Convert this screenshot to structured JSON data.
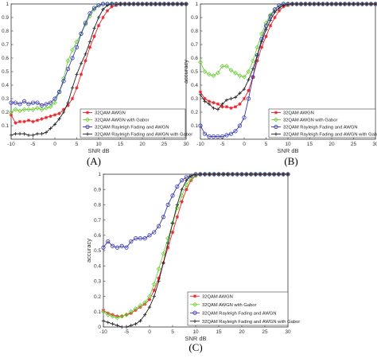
{
  "chart_data": [
    {
      "panel": "(A)",
      "type": "line",
      "xlabel": "SNR dB",
      "ylabel": "accuracy",
      "xlim": [
        -10,
        30
      ],
      "ylim": [
        0,
        1
      ],
      "xticks": [
        -10,
        -5,
        0,
        5,
        10,
        15,
        20,
        25,
        30
      ],
      "yticks": [
        0.1,
        0.2,
        0.3,
        0.4,
        0.5,
        0.6,
        0.7,
        0.8,
        0.9,
        1
      ],
      "grid": false,
      "legend_position": "bottom-right",
      "x": [
        -10,
        -9,
        -8,
        -7,
        -6,
        -5,
        -4,
        -3,
        -2,
        -1,
        0,
        1,
        2,
        3,
        4,
        5,
        6,
        7,
        8,
        9,
        10,
        11,
        12,
        13,
        14,
        15,
        16,
        17,
        18,
        19,
        20,
        21,
        22,
        23,
        24,
        25,
        26,
        27,
        28,
        29,
        30
      ],
      "series": [
        {
          "name": "32QAM AWGN",
          "color": "#e8232a",
          "marker": "star",
          "values": [
            0.18,
            0.12,
            0.13,
            0.13,
            0.14,
            0.13,
            0.14,
            0.15,
            0.16,
            0.17,
            0.18,
            0.19,
            0.22,
            0.25,
            0.3,
            0.38,
            0.48,
            0.58,
            0.68,
            0.76,
            0.84,
            0.9,
            0.95,
            0.98,
            0.99,
            1,
            1,
            1,
            1,
            1,
            1,
            1,
            1,
            1,
            1,
            1,
            1,
            1,
            1,
            1,
            1
          ]
        },
        {
          "name": "32QAM AWGN with Gabor",
          "color": "#6fcf3a",
          "marker": "diamond",
          "values": [
            0.2,
            0.22,
            0.21,
            0.22,
            0.22,
            0.22,
            0.23,
            0.22,
            0.23,
            0.24,
            0.27,
            0.35,
            0.45,
            0.58,
            0.66,
            0.72,
            0.78,
            0.85,
            0.91,
            0.96,
            0.99,
            1,
            1,
            1,
            1,
            1,
            1,
            1,
            1,
            1,
            1,
            1,
            1,
            1,
            1,
            1,
            1,
            1,
            1,
            1,
            1
          ]
        },
        {
          "name": "32QAM Rayleigh Fading and AWGN",
          "color": "#3535b5",
          "marker": "circle",
          "values": [
            0.27,
            0.27,
            0.26,
            0.28,
            0.26,
            0.27,
            0.27,
            0.25,
            0.26,
            0.27,
            0.3,
            0.35,
            0.43,
            0.52,
            0.6,
            0.68,
            0.78,
            0.86,
            0.93,
            0.97,
            0.99,
            1,
            1,
            1,
            1,
            1,
            1,
            1,
            1,
            1,
            1,
            1,
            1,
            1,
            1,
            1,
            1,
            1,
            1,
            1,
            1
          ]
        },
        {
          "name": "32QAM Rayleigh Fading and AWGN with Gabor",
          "color": "#222222",
          "marker": "plus",
          "values": [
            0.03,
            0.04,
            0.04,
            0.04,
            0.03,
            0.03,
            0.04,
            0.04,
            0.05,
            0.08,
            0.11,
            0.15,
            0.2,
            0.27,
            0.38,
            0.48,
            0.56,
            0.63,
            0.72,
            0.82,
            0.9,
            0.96,
            0.99,
            1,
            1,
            1,
            1,
            1,
            1,
            1,
            1,
            1,
            1,
            1,
            1,
            1,
            1,
            1,
            1,
            1,
            1
          ]
        }
      ]
    },
    {
      "panel": "(B)",
      "type": "line",
      "xlabel": "SNR dB",
      "ylabel": "accuracy",
      "xlim": [
        -10,
        30
      ],
      "ylim": [
        0,
        1
      ],
      "xticks": [
        -10,
        -5,
        0,
        5,
        10,
        15,
        20,
        25,
        30
      ],
      "yticks": [
        0.1,
        0.2,
        0.3,
        0.4,
        0.5,
        0.6,
        0.7,
        0.8,
        0.9,
        1
      ],
      "grid": false,
      "legend_position": "bottom-right",
      "x": [
        -10,
        -9,
        -8,
        -7,
        -6,
        -5,
        -4,
        -3,
        -2,
        -1,
        0,
        1,
        2,
        3,
        4,
        5,
        6,
        7,
        8,
        9,
        10,
        11,
        12,
        13,
        14,
        15,
        16,
        17,
        18,
        19,
        20,
        21,
        22,
        23,
        24,
        25,
        26,
        27,
        28,
        29,
        30
      ],
      "series": [
        {
          "name": "32QAM AWGN",
          "color": "#e8232a",
          "marker": "star",
          "values": [
            0.35,
            0.3,
            0.28,
            0.27,
            0.26,
            0.24,
            0.24,
            0.23,
            0.24,
            0.26,
            0.3,
            0.36,
            0.46,
            0.58,
            0.68,
            0.76,
            0.84,
            0.9,
            0.95,
            0.98,
            0.99,
            1,
            1,
            1,
            1,
            1,
            1,
            1,
            1,
            1,
            1,
            1,
            1,
            1,
            1,
            1,
            1,
            1,
            1,
            1,
            1
          ]
        },
        {
          "name": "32QAM AWGN with Gabor",
          "color": "#6fcf3a",
          "marker": "diamond",
          "values": [
            0.57,
            0.5,
            0.48,
            0.47,
            0.49,
            0.54,
            0.54,
            0.51,
            0.49,
            0.47,
            0.46,
            0.5,
            0.58,
            0.68,
            0.78,
            0.86,
            0.92,
            0.96,
            0.99,
            1,
            1,
            1,
            1,
            1,
            1,
            1,
            1,
            1,
            1,
            1,
            1,
            1,
            1,
            1,
            1,
            1,
            1,
            1,
            1,
            1,
            1
          ]
        },
        {
          "name": "32QAM Rayleigh Fading and AWGN",
          "color": "#3535b5",
          "marker": "circle",
          "values": [
            0.1,
            0.04,
            0.02,
            0.02,
            0.02,
            0.02,
            0.03,
            0.04,
            0.06,
            0.1,
            0.16,
            0.3,
            0.46,
            0.62,
            0.74,
            0.84,
            0.91,
            0.96,
            0.99,
            1,
            1,
            1,
            1,
            1,
            1,
            1,
            1,
            1,
            1,
            1,
            1,
            1,
            1,
            1,
            1,
            1,
            1,
            1,
            1,
            1,
            1
          ]
        },
        {
          "name": "32QAM Rayleigh Fading and AWGN with Gabor",
          "color": "#222222",
          "marker": "plus",
          "values": [
            0.33,
            0.28,
            0.26,
            0.23,
            0.22,
            0.26,
            0.29,
            0.3,
            0.31,
            0.34,
            0.37,
            0.44,
            0.52,
            0.62,
            0.72,
            0.81,
            0.88,
            0.94,
            0.97,
            0.99,
            1,
            1,
            1,
            1,
            1,
            1,
            1,
            1,
            1,
            1,
            1,
            1,
            1,
            1,
            1,
            1,
            1,
            1,
            1,
            1,
            1
          ]
        }
      ]
    },
    {
      "panel": "(C)",
      "type": "line",
      "xlabel": "SNR dB",
      "ylabel": "accuracy",
      "xlim": [
        -10,
        30
      ],
      "ylim": [
        0,
        1
      ],
      "xticks": [
        -10,
        -5,
        0,
        5,
        10,
        15,
        20,
        25,
        30
      ],
      "yticks": [
        0,
        0.1,
        0.2,
        0.3,
        0.4,
        0.5,
        0.6,
        0.7,
        0.8,
        0.9,
        1
      ],
      "grid": false,
      "legend_position": "bottom-right",
      "x": [
        -10,
        -9,
        -8,
        -7,
        -6,
        -5,
        -4,
        -3,
        -2,
        -1,
        0,
        1,
        2,
        3,
        4,
        5,
        6,
        7,
        8,
        9,
        10,
        11,
        12,
        13,
        14,
        15,
        16,
        17,
        18,
        19,
        20,
        21,
        22,
        23,
        24,
        25,
        26,
        27,
        28,
        29,
        30
      ],
      "series": [
        {
          "name": "32QAM AWGN",
          "color": "#e8232a",
          "marker": "star",
          "values": [
            0.11,
            0.09,
            0.08,
            0.07,
            0.07,
            0.08,
            0.09,
            0.11,
            0.13,
            0.15,
            0.18,
            0.24,
            0.32,
            0.42,
            0.52,
            0.62,
            0.72,
            0.82,
            0.9,
            0.96,
            0.99,
            1,
            1,
            1,
            1,
            1,
            1,
            1,
            1,
            1,
            1,
            1,
            1,
            1,
            1,
            1,
            1,
            1,
            1,
            1,
            1
          ]
        },
        {
          "name": "32QAM AWGN with Gabor",
          "color": "#6fcf3a",
          "marker": "diamond",
          "values": [
            0.1,
            0.08,
            0.07,
            0.06,
            0.07,
            0.08,
            0.1,
            0.12,
            0.14,
            0.16,
            0.2,
            0.28,
            0.38,
            0.48,
            0.58,
            0.68,
            0.78,
            0.86,
            0.93,
            0.97,
            0.99,
            1,
            1,
            1,
            1,
            1,
            1,
            1,
            1,
            1,
            1,
            1,
            1,
            1,
            1,
            1,
            1,
            1,
            1,
            1,
            1
          ]
        },
        {
          "name": "32QAM Rayleigh Fading and AWGN",
          "color": "#3535b5",
          "marker": "circle",
          "values": [
            0.52,
            0.56,
            0.53,
            0.52,
            0.53,
            0.52,
            0.56,
            0.58,
            0.58,
            0.58,
            0.6,
            0.62,
            0.66,
            0.72,
            0.8,
            0.86,
            0.92,
            0.96,
            0.98,
            0.99,
            1,
            1,
            1,
            1,
            1,
            1,
            1,
            1,
            1,
            1,
            1,
            1,
            1,
            1,
            1,
            1,
            1,
            1,
            1,
            1,
            1
          ]
        },
        {
          "name": "32QAM Rayleigh Fading and AWGN with Gabor",
          "color": "#222222",
          "marker": "plus",
          "values": [
            0.04,
            0.03,
            0.02,
            0.01,
            0.0,
            0.0,
            0.01,
            0.02,
            0.04,
            0.08,
            0.13,
            0.2,
            0.3,
            0.42,
            0.55,
            0.68,
            0.8,
            0.9,
            0.96,
            0.99,
            1,
            1,
            1,
            1,
            1,
            1,
            1,
            1,
            1,
            1,
            1,
            1,
            1,
            1,
            1,
            1,
            1,
            1,
            1,
            1,
            1
          ]
        }
      ]
    }
  ]
}
